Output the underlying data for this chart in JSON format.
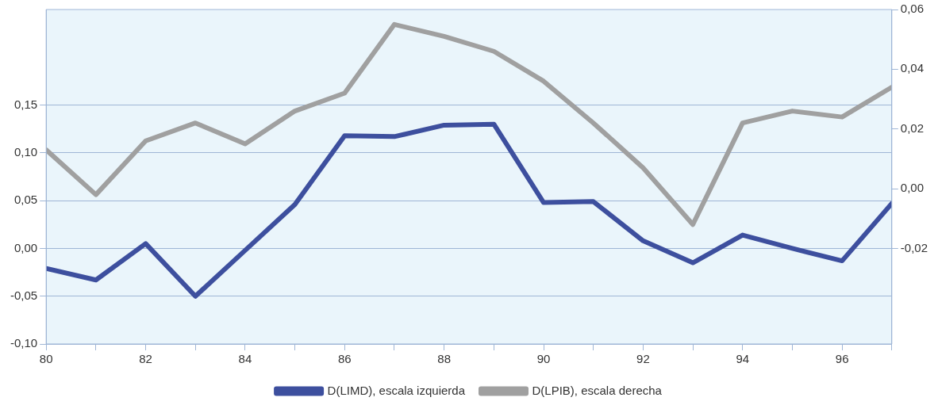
{
  "chart_data": {
    "type": "line",
    "x": [
      80,
      81,
      82,
      83,
      84,
      85,
      86,
      87,
      88,
      89,
      90,
      91,
      92,
      93,
      94,
      95,
      96,
      97
    ],
    "xlim": [
      80,
      97
    ],
    "xticks": [
      80,
      {
        "value": 81,
        "label": null
      },
      82,
      {
        "value": 83,
        "label": null
      },
      84,
      {
        "value": 85,
        "label": null
      },
      86,
      {
        "value": 87,
        "label": null
      },
      88,
      {
        "value": 89,
        "label": null
      },
      90,
      {
        "value": 91,
        "label": null
      },
      92,
      {
        "value": 93,
        "label": null
      },
      94,
      {
        "value": 95,
        "label": null
      },
      96,
      {
        "value": 97,
        "label": null
      }
    ],
    "ylim": [
      -0.1,
      0.25
    ],
    "yticks": [
      {
        "value": -0.1,
        "label": "-0,10"
      },
      {
        "value": -0.05,
        "label": "-0,05"
      },
      {
        "value": 0,
        "label": "0,00"
      },
      {
        "value": 0.05,
        "label": "0,05"
      },
      {
        "value": 0.1,
        "label": "0,10"
      },
      {
        "value": 0.15,
        "label": "0,15"
      }
    ],
    "y2lim": [
      -0.052,
      0.06
    ],
    "y2ticks": [
      {
        "value": -0.02,
        "label": "-0,02"
      },
      {
        "value": 0,
        "label": "0,00"
      },
      {
        "value": 0.02,
        "label": "0,02"
      },
      {
        "value": 0.04,
        "label": "0,04"
      },
      {
        "value": 0.06,
        "label": "0,06"
      }
    ],
    "series": [
      {
        "name": "D(LIMD), escala izquierda",
        "color": "#3d4f9e",
        "values": [
          -0.021,
          -0.033,
          0.005,
          -0.05,
          -0.002,
          0.046,
          0.118,
          0.117,
          0.129,
          0.13,
          0.048,
          0.049,
          0.008,
          -0.015,
          0.014,
          0.0,
          -0.013,
          0.047
        ]
      },
      {
        "name": "D(LPIB), escala derecha",
        "color": "#a0a0a0",
        "axis": "y2",
        "values": [
          0.013,
          -0.002,
          0.016,
          0.022,
          0.015,
          0.026,
          0.032,
          0.055,
          0.051,
          0.046,
          0.036,
          0.022,
          0.007,
          -0.012,
          0.022,
          0.026,
          0.024,
          0.034
        ]
      }
    ],
    "grid": "y",
    "legend": "bottom",
    "marker": "none",
    "line_style": "solid"
  }
}
